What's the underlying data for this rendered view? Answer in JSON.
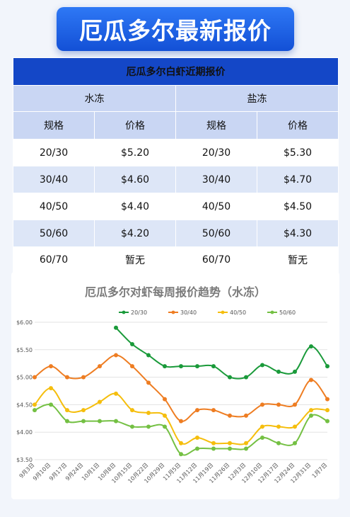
{
  "banner": {
    "title": "厄瓜多尔最新报价"
  },
  "table": {
    "title": "厄瓜多尔白虾近期报价",
    "groups": {
      "left": "水冻",
      "right": "盐冻"
    },
    "headers": {
      "spec": "规格",
      "price": "价格"
    },
    "rows": [
      {
        "spec_l": "20/30",
        "price_l": "$5.20",
        "spec_r": "20/30",
        "price_r": "$5.30"
      },
      {
        "spec_l": "30/40",
        "price_l": "$4.60",
        "spec_r": "30/40",
        "price_r": "$4.70"
      },
      {
        "spec_l": "40/50",
        "price_l": "$4.40",
        "spec_r": "40/50",
        "price_r": "$4.50"
      },
      {
        "spec_l": "50/60",
        "price_l": "$4.20",
        "spec_r": "50/60",
        "price_r": "$4.30"
      },
      {
        "spec_l": "60/70",
        "price_l": "暂无",
        "spec_r": "60/70",
        "price_r": "暂无"
      }
    ]
  },
  "chart_data": {
    "type": "line",
    "title": "厄瓜多尔对虾每周报价趋势（水冻）",
    "x": [
      "9月3日",
      "9月10日",
      "9月17日",
      "9月24日",
      "10月1日",
      "10月8日",
      "10月15日",
      "10月22日",
      "10月29日",
      "11月5日",
      "11月12日",
      "11月19日",
      "11月26日",
      "12月3日",
      "12月10日",
      "12月17日",
      "12月24日",
      "12月31日",
      "1月7日"
    ],
    "x_labeled": [
      "9月3日",
      "9月10日",
      "9月17日",
      "9月24日",
      "10月1日",
      "10月8日",
      "10月15日",
      "10月22日",
      "10月29日",
      "11月5日",
      "11月12日",
      "11月19日",
      "11月26日",
      "12月3日",
      "12月10日",
      "12月17日",
      "12月24日",
      "12月31日",
      "1月7日"
    ],
    "y_tick_labels": [
      "$6.00",
      "$5.50",
      "$5.00",
      "$4.50",
      "$4.00",
      "$3.50"
    ],
    "ylim": [
      3.5,
      6.0
    ],
    "y_ticks": [
      3.5,
      4.0,
      4.5,
      5.0,
      5.5,
      6.0
    ],
    "grid": true,
    "legend_position": "top",
    "series": [
      {
        "name": "20/30",
        "color": "#1a9a3a",
        "values": [
          null,
          null,
          null,
          null,
          null,
          5.9,
          5.6,
          5.4,
          5.2,
          5.2,
          5.2,
          5.2,
          5.0,
          5.0,
          5.22,
          5.1,
          5.1,
          5.56,
          5.2
        ]
      },
      {
        "name": "30/40",
        "color": "#ee7d22",
        "values": [
          5.0,
          5.2,
          5.0,
          5.0,
          5.2,
          5.4,
          5.2,
          4.9,
          4.6,
          4.2,
          4.4,
          4.4,
          4.3,
          4.3,
          4.5,
          4.5,
          4.5,
          4.95,
          4.6
        ]
      },
      {
        "name": "40/50",
        "color": "#f5be0d",
        "values": [
          4.5,
          4.8,
          4.4,
          4.4,
          4.55,
          4.7,
          4.4,
          4.35,
          4.3,
          3.8,
          3.9,
          3.8,
          3.8,
          3.8,
          4.1,
          4.1,
          4.1,
          4.4,
          4.4
        ]
      },
      {
        "name": "50/60",
        "color": "#74c043",
        "values": [
          4.4,
          4.5,
          4.2,
          4.2,
          4.2,
          4.2,
          4.1,
          4.1,
          4.1,
          3.6,
          3.7,
          3.7,
          3.7,
          3.7,
          3.9,
          3.8,
          3.8,
          4.3,
          4.2
        ]
      }
    ]
  }
}
